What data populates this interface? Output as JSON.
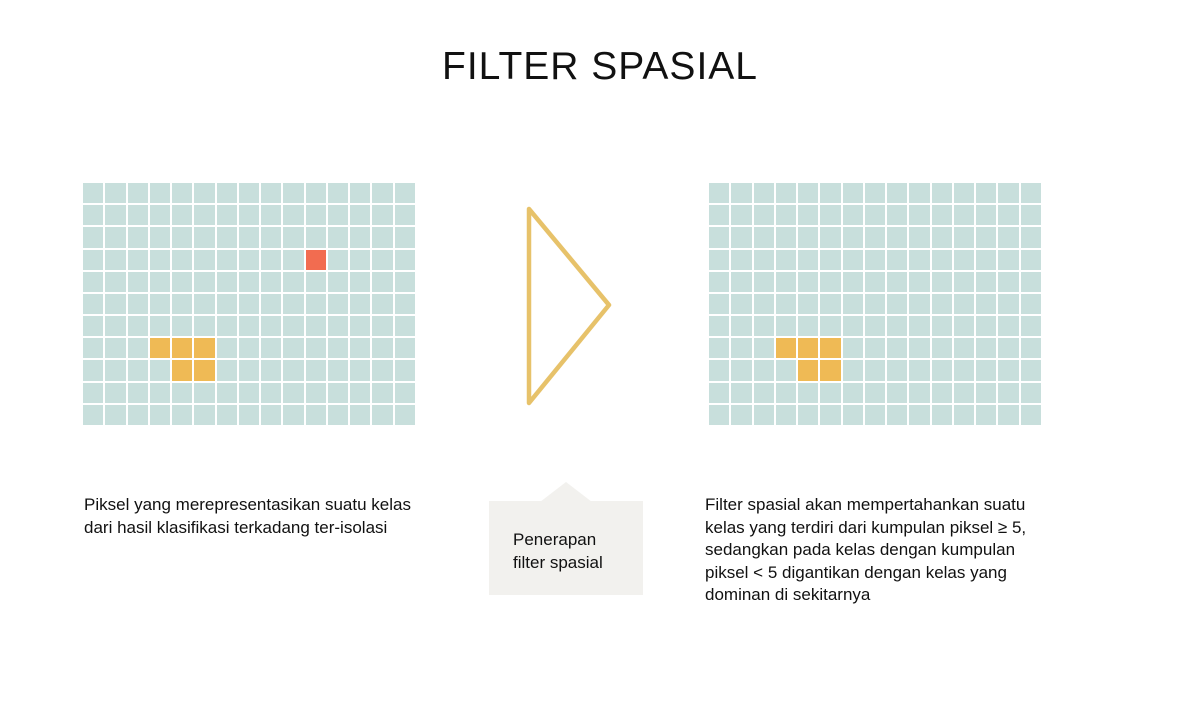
{
  "title": "FILTER SPASIAL",
  "colors": {
    "background_cell": "#c8dfdc",
    "class_a": "#efba55",
    "class_b": "#f26c50",
    "arrow": "#e7c26a",
    "callout_bg": "#f2f1ee"
  },
  "grid_size": {
    "rows": 11,
    "cols": 15
  },
  "grids": {
    "before": {
      "colored_cells": [
        {
          "row": 3,
          "col": 10,
          "class": "class-b"
        },
        {
          "row": 7,
          "col": 3,
          "class": "class-a"
        },
        {
          "row": 7,
          "col": 4,
          "class": "class-a"
        },
        {
          "row": 7,
          "col": 5,
          "class": "class-a"
        },
        {
          "row": 8,
          "col": 4,
          "class": "class-a"
        },
        {
          "row": 8,
          "col": 5,
          "class": "class-a"
        }
      ]
    },
    "after": {
      "colored_cells": [
        {
          "row": 7,
          "col": 3,
          "class": "class-a"
        },
        {
          "row": 7,
          "col": 4,
          "class": "class-a"
        },
        {
          "row": 7,
          "col": 5,
          "class": "class-a"
        },
        {
          "row": 8,
          "col": 4,
          "class": "class-a"
        },
        {
          "row": 8,
          "col": 5,
          "class": "class-a"
        }
      ]
    }
  },
  "arrow_icon": "triangle-right-outline-icon",
  "left_description": "Piksel yang merepresentasikan suatu kelas dari hasil klasifikasi terkadang ter-isolasi",
  "callout": {
    "line1": "Penerapan",
    "line2": "filter spasial"
  },
  "right_description": "Filter spasial akan mempertahankan suatu kelas yang terdiri dari kumpulan piksel ≥ 5, sedangkan pada kelas dengan kumpulan piksel < 5 digantikan dengan kelas yang dominan di sekitarnya"
}
